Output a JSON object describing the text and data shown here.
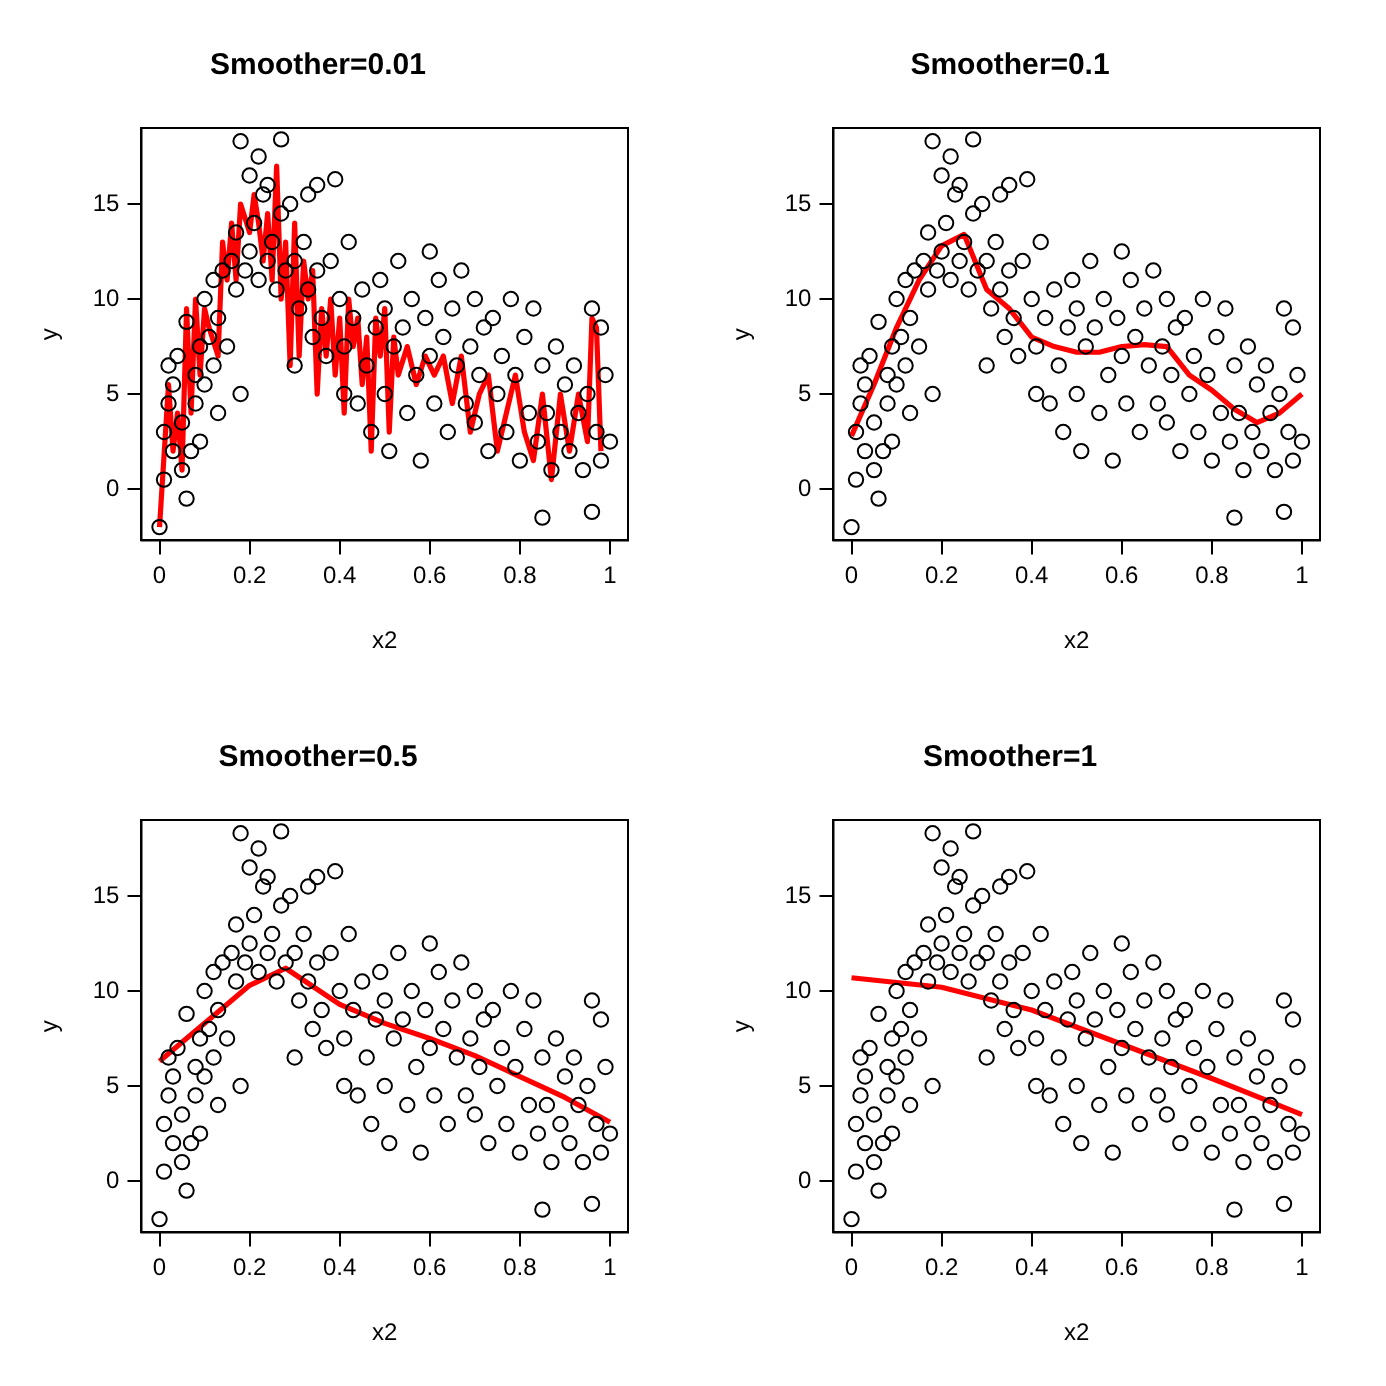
{
  "chart_data": [
    {
      "type": "scatter",
      "title": "Smoother=0.01",
      "xlabel": "x2",
      "ylabel": "y",
      "xlim": [
        -0.04,
        1.04
      ],
      "ylim": [
        -2.7,
        19
      ],
      "xticks": [
        0,
        0.2,
        0.4,
        0.6,
        0.8,
        1
      ],
      "yticks": [
        0,
        5,
        10,
        15
      ],
      "grid": false,
      "legend": false,
      "series": [
        {
          "type": "scatter",
          "color": "#000000",
          "marker": "circle",
          "x": [
            0,
            0.01,
            0.01,
            0.02,
            0.02,
            0.03,
            0.03,
            0.04,
            0.05,
            0.05,
            0.06,
            0.06,
            0.07,
            0.08,
            0.08,
            0.09,
            0.09,
            0.1,
            0.1,
            0.11,
            0.12,
            0.12,
            0.13,
            0.13,
            0.14,
            0.15,
            0.16,
            0.17,
            0.17,
            0.18,
            0.18,
            0.19,
            0.2,
            0.2,
            0.21,
            0.22,
            0.22,
            0.23,
            0.24,
            0.24,
            0.25,
            0.26,
            0.27,
            0.27,
            0.28,
            0.29,
            0.3,
            0.3,
            0.31,
            0.32,
            0.33,
            0.33,
            0.34,
            0.35,
            0.35,
            0.36,
            0.37,
            0.38,
            0.39,
            0.4,
            0.41,
            0.41,
            0.42,
            0.43,
            0.44,
            0.45,
            0.46,
            0.47,
            0.48,
            0.49,
            0.5,
            0.5,
            0.51,
            0.52,
            0.53,
            0.54,
            0.55,
            0.56,
            0.57,
            0.58,
            0.59,
            0.6,
            0.6,
            0.61,
            0.62,
            0.63,
            0.64,
            0.65,
            0.66,
            0.67,
            0.68,
            0.69,
            0.7,
            0.7,
            0.71,
            0.72,
            0.73,
            0.74,
            0.75,
            0.76,
            0.77,
            0.78,
            0.79,
            0.8,
            0.81,
            0.82,
            0.83,
            0.84,
            0.85,
            0.85,
            0.86,
            0.87,
            0.88,
            0.89,
            0.9,
            0.91,
            0.92,
            0.93,
            0.94,
            0.95,
            0.96,
            0.96,
            0.97,
            0.98,
            0.98,
            0.99,
            1
          ],
          "values": [
            -2,
            0.5,
            3,
            4.5,
            6.5,
            5.5,
            2,
            7,
            1,
            3.5,
            -0.5,
            8.8,
            2,
            4.5,
            6,
            7.5,
            2.5,
            10,
            5.5,
            8,
            11,
            6.5,
            9,
            4,
            11.5,
            7.5,
            12,
            13.5,
            10.5,
            18.3,
            5,
            11.5,
            16.5,
            12.5,
            14,
            11,
            17.5,
            15.5,
            12,
            16,
            13,
            10.5,
            18.4,
            14.5,
            11.5,
            15,
            12,
            6.5,
            9.5,
            13,
            15.5,
            10.5,
            8,
            16,
            11.5,
            9,
            7,
            12,
            16.3,
            10,
            5,
            7.5,
            13,
            9,
            4.5,
            10.5,
            6.5,
            3,
            8.5,
            11,
            5,
            9.5,
            2,
            7.5,
            12,
            8.5,
            4,
            10,
            6,
            1.5,
            9,
            12.5,
            7,
            4.5,
            11,
            8,
            3,
            9.5,
            6.5,
            11.5,
            4.5,
            7.5,
            10,
            3.5,
            6,
            8.5,
            2,
            9,
            5,
            7,
            3,
            10,
            6,
            1.5,
            8,
            4,
            9.5,
            2.5,
            -1.5,
            6.5,
            4,
            1,
            7.5,
            3,
            5.5,
            2,
            6.5,
            4,
            1,
            5,
            9.5,
            -1.2,
            3,
            8.5,
            1.5,
            6,
            2.5
          ]
        },
        {
          "type": "line",
          "color": "#ff0000",
          "marker": "none",
          "x": [
            0,
            0.02,
            0.03,
            0.04,
            0.05,
            0.06,
            0.07,
            0.08,
            0.09,
            0.1,
            0.11,
            0.13,
            0.14,
            0.15,
            0.16,
            0.17,
            0.18,
            0.2,
            0.21,
            0.22,
            0.23,
            0.24,
            0.25,
            0.26,
            0.27,
            0.28,
            0.29,
            0.3,
            0.31,
            0.32,
            0.33,
            0.34,
            0.35,
            0.36,
            0.37,
            0.38,
            0.39,
            0.4,
            0.41,
            0.42,
            0.43,
            0.44,
            0.45,
            0.46,
            0.47,
            0.48,
            0.49,
            0.5,
            0.51,
            0.52,
            0.53,
            0.55,
            0.57,
            0.59,
            0.61,
            0.63,
            0.65,
            0.67,
            0.69,
            0.71,
            0.73,
            0.75,
            0.77,
            0.79,
            0.81,
            0.83,
            0.85,
            0.87,
            0.89,
            0.91,
            0.93,
            0.95,
            0.96,
            0.97,
            0.98
          ],
          "values": [
            -2,
            5.5,
            2,
            4,
            1,
            9.5,
            4,
            10,
            6,
            9.5,
            8.5,
            7,
            13,
            11,
            14,
            11,
            15,
            13.5,
            15.5,
            14,
            12,
            14.5,
            11,
            17,
            10,
            13,
            6.5,
            14,
            7,
            12,
            10,
            11.5,
            5,
            9.5,
            7,
            10,
            6,
            9,
            4,
            10,
            7.5,
            9,
            5.5,
            8,
            2,
            9,
            7,
            9.5,
            3,
            8,
            6,
            7.5,
            5.5,
            7,
            6,
            7,
            4.5,
            7,
            3,
            5,
            6,
            2,
            4,
            6,
            3,
            1.5,
            5,
            0.5,
            5,
            2,
            5,
            2.5,
            9,
            8.5,
            2
          ]
        }
      ]
    },
    {
      "type": "scatter",
      "title": "Smoother=0.1",
      "xlabel": "x2",
      "ylabel": "y",
      "xlim": [
        -0.04,
        1.04
      ],
      "ylim": [
        -2.7,
        19
      ],
      "xticks": [
        0,
        0.2,
        0.4,
        0.6,
        0.8,
        1
      ],
      "yticks": [
        0,
        5,
        10,
        15
      ],
      "grid": false,
      "legend": false,
      "series": [
        {
          "type": "scatter",
          "color": "#000000",
          "marker": "circle",
          "x": [
            0,
            0.01,
            0.01,
            0.02,
            0.02,
            0.03,
            0.03,
            0.04,
            0.05,
            0.05,
            0.06,
            0.06,
            0.07,
            0.08,
            0.08,
            0.09,
            0.09,
            0.1,
            0.1,
            0.11,
            0.12,
            0.12,
            0.13,
            0.13,
            0.14,
            0.15,
            0.16,
            0.17,
            0.17,
            0.18,
            0.18,
            0.19,
            0.2,
            0.2,
            0.21,
            0.22,
            0.22,
            0.23,
            0.24,
            0.24,
            0.25,
            0.26,
            0.27,
            0.27,
            0.28,
            0.29,
            0.3,
            0.3,
            0.31,
            0.32,
            0.33,
            0.33,
            0.34,
            0.35,
            0.35,
            0.36,
            0.37,
            0.38,
            0.39,
            0.4,
            0.41,
            0.41,
            0.42,
            0.43,
            0.44,
            0.45,
            0.46,
            0.47,
            0.48,
            0.49,
            0.5,
            0.5,
            0.51,
            0.52,
            0.53,
            0.54,
            0.55,
            0.56,
            0.57,
            0.58,
            0.59,
            0.6,
            0.6,
            0.61,
            0.62,
            0.63,
            0.64,
            0.65,
            0.66,
            0.67,
            0.68,
            0.69,
            0.7,
            0.7,
            0.71,
            0.72,
            0.73,
            0.74,
            0.75,
            0.76,
            0.77,
            0.78,
            0.79,
            0.8,
            0.81,
            0.82,
            0.83,
            0.84,
            0.85,
            0.85,
            0.86,
            0.87,
            0.88,
            0.89,
            0.9,
            0.91,
            0.92,
            0.93,
            0.94,
            0.95,
            0.96,
            0.96,
            0.97,
            0.98,
            0.98,
            0.99,
            1
          ],
          "values": [
            -2,
            0.5,
            3,
            4.5,
            6.5,
            5.5,
            2,
            7,
            1,
            3.5,
            -0.5,
            8.8,
            2,
            4.5,
            6,
            7.5,
            2.5,
            10,
            5.5,
            8,
            11,
            6.5,
            9,
            4,
            11.5,
            7.5,
            12,
            13.5,
            10.5,
            18.3,
            5,
            11.5,
            16.5,
            12.5,
            14,
            11,
            17.5,
            15.5,
            12,
            16,
            13,
            10.5,
            18.4,
            14.5,
            11.5,
            15,
            12,
            6.5,
            9.5,
            13,
            15.5,
            10.5,
            8,
            16,
            11.5,
            9,
            7,
            12,
            16.3,
            10,
            5,
            7.5,
            13,
            9,
            4.5,
            10.5,
            6.5,
            3,
            8.5,
            11,
            5,
            9.5,
            2,
            7.5,
            12,
            8.5,
            4,
            10,
            6,
            1.5,
            9,
            12.5,
            7,
            4.5,
            11,
            8,
            3,
            9.5,
            6.5,
            11.5,
            4.5,
            7.5,
            10,
            3.5,
            6,
            8.5,
            2,
            9,
            5,
            7,
            3,
            10,
            6,
            1.5,
            8,
            4,
            9.5,
            2.5,
            -1.5,
            6.5,
            4,
            1,
            7.5,
            3,
            5.5,
            2,
            6.5,
            4,
            1,
            5,
            9.5,
            -1.2,
            3,
            8.5,
            1.5,
            6,
            2.5
          ]
        },
        {
          "type": "line",
          "color": "#ff0000",
          "marker": "none",
          "x": [
            0,
            0.05,
            0.1,
            0.15,
            0.2,
            0.25,
            0.3,
            0.35,
            0.4,
            0.45,
            0.5,
            0.55,
            0.6,
            0.65,
            0.7,
            0.75,
            0.8,
            0.85,
            0.9,
            0.95,
            1
          ],
          "values": [
            2.8,
            5.5,
            8.5,
            11,
            12.8,
            13.4,
            10.5,
            9.5,
            8,
            7.5,
            7.2,
            7.2,
            7.5,
            7.6,
            7.5,
            6,
            5.2,
            4.2,
            3.5,
            4,
            5
          ]
        }
      ]
    },
    {
      "type": "scatter",
      "title": "Smoother=0.5",
      "xlabel": "x2",
      "ylabel": "y",
      "xlim": [
        -0.04,
        1.04
      ],
      "ylim": [
        -2.7,
        19
      ],
      "xticks": [
        0,
        0.2,
        0.4,
        0.6,
        0.8,
        1
      ],
      "yticks": [
        0,
        5,
        10,
        15
      ],
      "grid": false,
      "legend": false,
      "series": [
        {
          "type": "scatter",
          "color": "#000000",
          "marker": "circle",
          "x": [
            0,
            0.01,
            0.01,
            0.02,
            0.02,
            0.03,
            0.03,
            0.04,
            0.05,
            0.05,
            0.06,
            0.06,
            0.07,
            0.08,
            0.08,
            0.09,
            0.09,
            0.1,
            0.1,
            0.11,
            0.12,
            0.12,
            0.13,
            0.13,
            0.14,
            0.15,
            0.16,
            0.17,
            0.17,
            0.18,
            0.18,
            0.19,
            0.2,
            0.2,
            0.21,
            0.22,
            0.22,
            0.23,
            0.24,
            0.24,
            0.25,
            0.26,
            0.27,
            0.27,
            0.28,
            0.29,
            0.3,
            0.3,
            0.31,
            0.32,
            0.33,
            0.33,
            0.34,
            0.35,
            0.35,
            0.36,
            0.37,
            0.38,
            0.39,
            0.4,
            0.41,
            0.41,
            0.42,
            0.43,
            0.44,
            0.45,
            0.46,
            0.47,
            0.48,
            0.49,
            0.5,
            0.5,
            0.51,
            0.52,
            0.53,
            0.54,
            0.55,
            0.56,
            0.57,
            0.58,
            0.59,
            0.6,
            0.6,
            0.61,
            0.62,
            0.63,
            0.64,
            0.65,
            0.66,
            0.67,
            0.68,
            0.69,
            0.7,
            0.7,
            0.71,
            0.72,
            0.73,
            0.74,
            0.75,
            0.76,
            0.77,
            0.78,
            0.79,
            0.8,
            0.81,
            0.82,
            0.83,
            0.84,
            0.85,
            0.85,
            0.86,
            0.87,
            0.88,
            0.89,
            0.9,
            0.91,
            0.92,
            0.93,
            0.94,
            0.95,
            0.96,
            0.96,
            0.97,
            0.98,
            0.98,
            0.99,
            1
          ],
          "values": [
            -2,
            0.5,
            3,
            4.5,
            6.5,
            5.5,
            2,
            7,
            1,
            3.5,
            -0.5,
            8.8,
            2,
            4.5,
            6,
            7.5,
            2.5,
            10,
            5.5,
            8,
            11,
            6.5,
            9,
            4,
            11.5,
            7.5,
            12,
            13.5,
            10.5,
            18.3,
            5,
            11.5,
            16.5,
            12.5,
            14,
            11,
            17.5,
            15.5,
            12,
            16,
            13,
            10.5,
            18.4,
            14.5,
            11.5,
            15,
            12,
            6.5,
            9.5,
            13,
            15.5,
            10.5,
            8,
            16,
            11.5,
            9,
            7,
            12,
            16.3,
            10,
            5,
            7.5,
            13,
            9,
            4.5,
            10.5,
            6.5,
            3,
            8.5,
            11,
            5,
            9.5,
            2,
            7.5,
            12,
            8.5,
            4,
            10,
            6,
            1.5,
            9,
            12.5,
            7,
            4.5,
            11,
            8,
            3,
            9.5,
            6.5,
            11.5,
            4.5,
            7.5,
            10,
            3.5,
            6,
            8.5,
            2,
            9,
            5,
            7,
            3,
            10,
            6,
            1.5,
            8,
            4,
            9.5,
            2.5,
            -1.5,
            6.5,
            4,
            1,
            7.5,
            3,
            5.5,
            2,
            6.5,
            4,
            1,
            5,
            9.5,
            -1.2,
            3,
            8.5,
            1.5,
            6,
            2.5
          ]
        },
        {
          "type": "line",
          "color": "#ff0000",
          "marker": "none",
          "x": [
            0,
            0.1,
            0.2,
            0.28,
            0.4,
            0.5,
            0.6,
            0.7,
            0.8,
            0.9,
            1
          ],
          "values": [
            6.3,
            8.3,
            10.3,
            11.2,
            9.3,
            8.3,
            7.5,
            6.6,
            5.5,
            4.4,
            3.1
          ]
        }
      ]
    },
    {
      "type": "scatter",
      "title": "Smoother=1",
      "xlabel": "x2",
      "ylabel": "y",
      "xlim": [
        -0.04,
        1.04
      ],
      "ylim": [
        -2.7,
        19
      ],
      "xticks": [
        0,
        0.2,
        0.4,
        0.6,
        0.8,
        1
      ],
      "yticks": [
        0,
        5,
        10,
        15
      ],
      "grid": false,
      "legend": false,
      "series": [
        {
          "type": "scatter",
          "color": "#000000",
          "marker": "circle",
          "x": [
            0,
            0.01,
            0.01,
            0.02,
            0.02,
            0.03,
            0.03,
            0.04,
            0.05,
            0.05,
            0.06,
            0.06,
            0.07,
            0.08,
            0.08,
            0.09,
            0.09,
            0.1,
            0.1,
            0.11,
            0.12,
            0.12,
            0.13,
            0.13,
            0.14,
            0.15,
            0.16,
            0.17,
            0.17,
            0.18,
            0.18,
            0.19,
            0.2,
            0.2,
            0.21,
            0.22,
            0.22,
            0.23,
            0.24,
            0.24,
            0.25,
            0.26,
            0.27,
            0.27,
            0.28,
            0.29,
            0.3,
            0.3,
            0.31,
            0.32,
            0.33,
            0.33,
            0.34,
            0.35,
            0.35,
            0.36,
            0.37,
            0.38,
            0.39,
            0.4,
            0.41,
            0.41,
            0.42,
            0.43,
            0.44,
            0.45,
            0.46,
            0.47,
            0.48,
            0.49,
            0.5,
            0.5,
            0.51,
            0.52,
            0.53,
            0.54,
            0.55,
            0.56,
            0.57,
            0.58,
            0.59,
            0.6,
            0.6,
            0.61,
            0.62,
            0.63,
            0.64,
            0.65,
            0.66,
            0.67,
            0.68,
            0.69,
            0.7,
            0.7,
            0.71,
            0.72,
            0.73,
            0.74,
            0.75,
            0.76,
            0.77,
            0.78,
            0.79,
            0.8,
            0.81,
            0.82,
            0.83,
            0.84,
            0.85,
            0.85,
            0.86,
            0.87,
            0.88,
            0.89,
            0.9,
            0.91,
            0.92,
            0.93,
            0.94,
            0.95,
            0.96,
            0.96,
            0.97,
            0.98,
            0.98,
            0.99,
            1
          ],
          "values": [
            -2,
            0.5,
            3,
            4.5,
            6.5,
            5.5,
            2,
            7,
            1,
            3.5,
            -0.5,
            8.8,
            2,
            4.5,
            6,
            7.5,
            2.5,
            10,
            5.5,
            8,
            11,
            6.5,
            9,
            4,
            11.5,
            7.5,
            12,
            13.5,
            10.5,
            18.3,
            5,
            11.5,
            16.5,
            12.5,
            14,
            11,
            17.5,
            15.5,
            12,
            16,
            13,
            10.5,
            18.4,
            14.5,
            11.5,
            15,
            12,
            6.5,
            9.5,
            13,
            15.5,
            10.5,
            8,
            16,
            11.5,
            9,
            7,
            12,
            16.3,
            10,
            5,
            7.5,
            13,
            9,
            4.5,
            10.5,
            6.5,
            3,
            8.5,
            11,
            5,
            9.5,
            2,
            7.5,
            12,
            8.5,
            4,
            10,
            6,
            1.5,
            9,
            12.5,
            7,
            4.5,
            11,
            8,
            3,
            9.5,
            6.5,
            11.5,
            4.5,
            7.5,
            10,
            3.5,
            6,
            8.5,
            2,
            9,
            5,
            7,
            3,
            10,
            6,
            1.5,
            8,
            4,
            9.5,
            2.5,
            -1.5,
            6.5,
            4,
            1,
            7.5,
            3,
            5.5,
            2,
            6.5,
            4,
            1,
            5,
            9.5,
            -1.2,
            3,
            8.5,
            1.5,
            6,
            2.5
          ]
        },
        {
          "type": "line",
          "color": "#ff0000",
          "marker": "none",
          "x": [
            0,
            0.2,
            0.4,
            0.6,
            0.8,
            1
          ],
          "values": [
            10.7,
            10.2,
            9,
            7.2,
            5.4,
            3.5
          ]
        }
      ]
    }
  ]
}
